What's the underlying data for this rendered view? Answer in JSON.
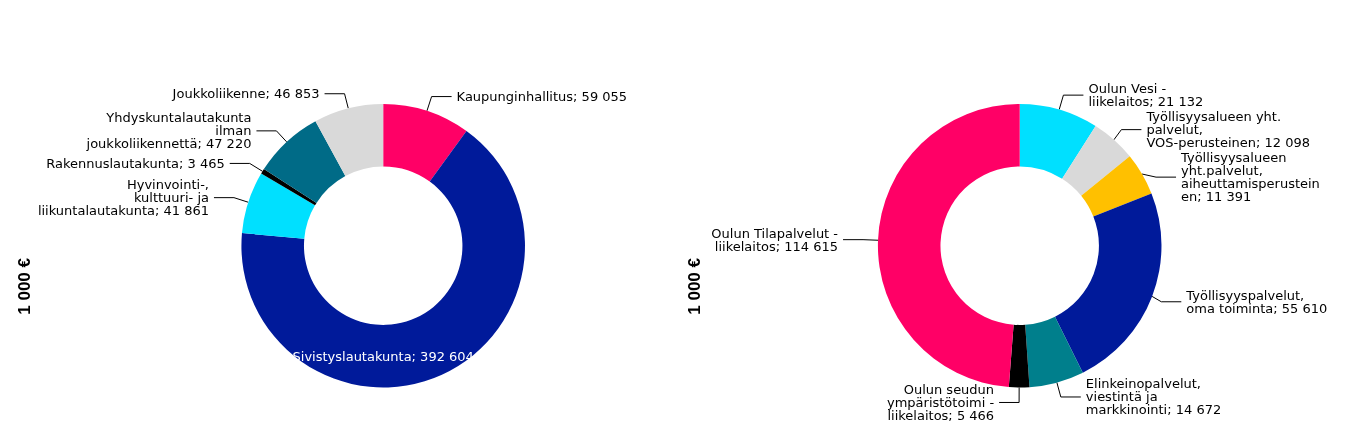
{
  "chart_data": [
    {
      "type": "donut",
      "ylabel": "1 000 €",
      "categories": [
        "Kaupunginhallitus",
        "Sivistyslautakunta",
        "Hyvinvointi-, kulttuuri- ja liikuntalautakunta",
        "Rakennuslautakunta",
        "Yhdyskuntalautakunta ilman joukkoliikennettä",
        "Joukkoliikenne"
      ],
      "values": [
        59055,
        392604,
        41861,
        3465,
        47220,
        46853
      ],
      "value_labels": [
        "59 055",
        "392 604",
        "41 861",
        "3 465",
        "47 220",
        "46 853"
      ],
      "colors": [
        "#ff0066",
        "#001a9a",
        "#00e0ff",
        "#000000",
        "#006b87",
        "#d9d9d9"
      ]
    },
    {
      "type": "donut",
      "ylabel": "1 000 €",
      "categories": [
        "Oulun Vesi - liikelaitos",
        "Työllisyysalueen yht. palvelut, VOS-perusteinen",
        "Työllisyysalueen yht.palvelut, aiheuttamisperusteinen",
        "Työllisyyspalvelut, oma toiminta",
        "Elinkeinopalvelut, viestintä ja markkinointi",
        "Oulun seudun ympäristötoimi - liikelaitos",
        "Oulun Tilapalvelut - liikelaitos"
      ],
      "values": [
        21132,
        12098,
        11391,
        55610,
        14672,
        5466,
        114615
      ],
      "value_labels": [
        "21 132",
        "12 098",
        "11 391",
        "55 610",
        "14 672",
        "5 466",
        "114 615"
      ],
      "colors": [
        "#00e0ff",
        "#d9d9d9",
        "#ffc000",
        "#001a9a",
        "#007f8c",
        "#000000",
        "#ff0066"
      ]
    }
  ]
}
